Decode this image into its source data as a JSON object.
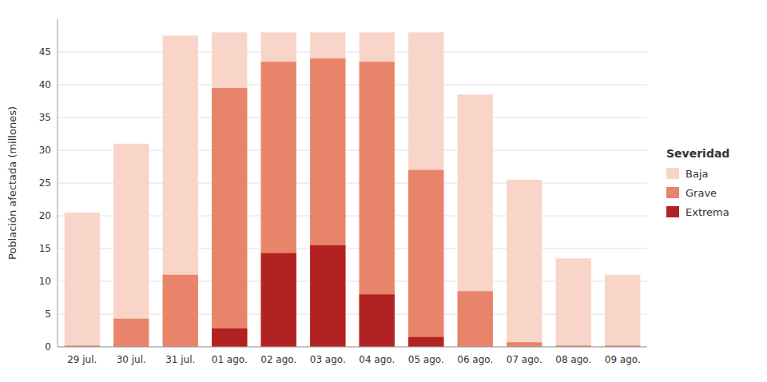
{
  "chart_data": {
    "type": "bar",
    "stacked": false,
    "categories": [
      "29 jul.",
      "30 jul.",
      "31 jul.",
      "01 ago.",
      "02 ago.",
      "03 ago.",
      "04 ago.",
      "05 ago.",
      "06 ago.",
      "07 ago.",
      "08 ago.",
      "09 ago."
    ],
    "series": [
      {
        "name": "Baja",
        "color": "#f9d5c9",
        "values": [
          20.5,
          31.0,
          47.5,
          48.0,
          48.0,
          48.0,
          48.0,
          48.0,
          38.5,
          25.5,
          13.5,
          11.0
        ]
      },
      {
        "name": "Grave",
        "color": "#e8846a",
        "values": [
          0.2,
          4.3,
          11.0,
          39.5,
          43.5,
          44.0,
          43.5,
          27.0,
          8.5,
          0.7,
          0.2,
          0.2
        ]
      },
      {
        "name": "Extrema",
        "color": "#b22222",
        "values": [
          0.0,
          0.0,
          0.0,
          2.8,
          14.3,
          15.5,
          8.0,
          1.5,
          0.0,
          0.0,
          0.0,
          0.0
        ]
      }
    ],
    "ylabel": "Población afectada (millones)",
    "legend_title": "Severidad",
    "legend": "right",
    "ylim": [
      0,
      50
    ],
    "yticks": [
      0,
      5,
      10,
      15,
      20,
      25,
      30,
      35,
      40,
      45
    ],
    "grid": true
  }
}
